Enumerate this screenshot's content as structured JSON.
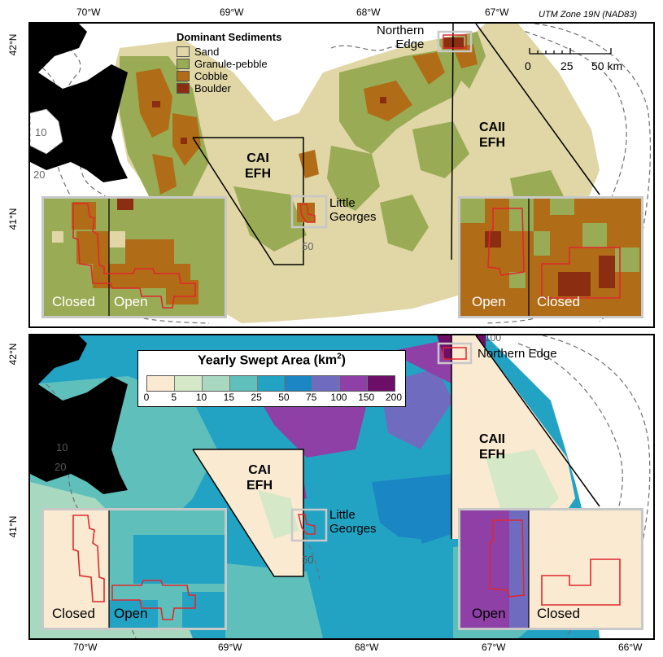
{
  "projection_label": "UTM Zone 19N (NAD83)",
  "top_lon_ticks": [
    "70°W",
    "69°W",
    "68°W",
    "67°W"
  ],
  "bottom_lon_ticks": [
    "70°W",
    "69°W",
    "68°W",
    "67°W",
    "66°W"
  ],
  "lat_ticks": [
    "42°N",
    "41°N"
  ],
  "depth_labels": [
    "10",
    "20",
    "50",
    "100"
  ],
  "top_panel": {
    "legend_title": "Dominant Sediments",
    "legend_items": [
      {
        "label": "Sand",
        "color": "#e0d6a6"
      },
      {
        "label": "Granule-pebble",
        "color": "#9aab55"
      },
      {
        "label": "Cobble",
        "color": "#b06c16"
      },
      {
        "label": "Boulder",
        "color": "#8a2d10"
      }
    ],
    "scale_bar": {
      "ticks": [
        "0",
        "25",
        "50 km"
      ]
    },
    "area_labels": {
      "cai": "CAI",
      "cai2": "EFH",
      "caii": "CAII",
      "caii2": "EFH",
      "little_georges_1": "Little",
      "little_georges_2": "Georges",
      "northern_edge_1": "Northern",
      "northern_edge_2": "Edge"
    },
    "inset_left": {
      "left_label": "Closed",
      "right_label": "Open"
    },
    "inset_right": {
      "left_label": "Open",
      "right_label": "Closed"
    }
  },
  "bottom_panel": {
    "colorbar_title": "Yearly Swept Area",
    "colorbar_unit": "km",
    "colorbar_unit_exp": "2",
    "colorbar_breaks": [
      "0",
      "5",
      "10",
      "15",
      "25",
      "50",
      "75",
      "100",
      "150",
      "200"
    ],
    "colorbar_colors": [
      "#fbead2",
      "#d5e8c8",
      "#a8d8c0",
      "#5fc0bb",
      "#22a3c4",
      "#1a86c3",
      "#6f6cc0",
      "#8e40a6",
      "#6d0f68"
    ],
    "area_labels": {
      "cai": "CAI",
      "cai2": "EFH",
      "caii": "CAII",
      "caii2": "EFH",
      "little_georges_1": "Little",
      "little_georges_2": "Georges",
      "northern_edge": "Northern Edge"
    },
    "inset_left": {
      "left_label": "Closed",
      "right_label": "Open"
    },
    "inset_right": {
      "left_label": "Open",
      "right_label": "Closed"
    }
  },
  "colors": {
    "land": "#000000",
    "sand": "#e0d6a6",
    "granule": "#9aab55",
    "cobble": "#b06c16",
    "boulder": "#8a2d10",
    "outline_red": "#e0282e",
    "inset_border": "#c8c8c8"
  }
}
